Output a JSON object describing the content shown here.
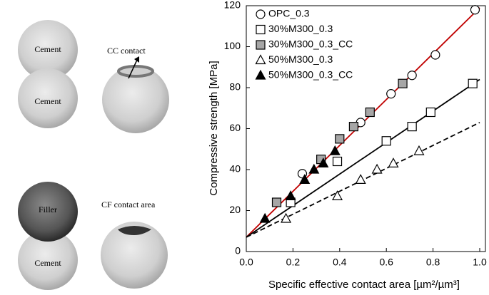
{
  "diagram": {
    "top_labels": [
      "Cement",
      "Cement"
    ],
    "top_contact": "CC contact",
    "bottom_labels": [
      "Filler",
      "Cement"
    ],
    "bottom_contact": "CF contact area"
  },
  "chart_data": {
    "type": "scatter",
    "xlabel": "Specific effective contact area [µm²/µm³]",
    "ylabel": "Compressive strength [MPa]",
    "xlim": [
      0,
      1.0
    ],
    "xticks": [
      {
        "value": 0,
        "label": "0.0"
      },
      {
        "value": 0.2,
        "label": "0.2"
      },
      {
        "value": 0.4,
        "label": "0.4"
      },
      {
        "value": 0.6,
        "label": "0.6"
      },
      {
        "value": 0.8,
        "label": "0.8"
      },
      {
        "value": 1.0,
        "label": "1.0"
      }
    ],
    "ylim": [
      0,
      120
    ],
    "yticks": [
      0,
      20,
      40,
      60,
      80,
      100,
      120
    ],
    "legend": "top-left",
    "series": [
      {
        "name": "OPC_0.3",
        "marker": "circle",
        "color": "#000000",
        "fill": "#ffffff",
        "x": [
          0.24,
          0.49,
          0.62,
          0.71,
          0.81,
          0.98
        ],
        "values": [
          38,
          63,
          77,
          86,
          96,
          118
        ]
      },
      {
        "name": "30%M300_0.3",
        "marker": "square",
        "color": "#000000",
        "fill": "#ffffff",
        "x": [
          0.19,
          0.39,
          0.6,
          0.71,
          0.79,
          0.97
        ],
        "values": [
          24,
          44,
          54,
          61,
          68,
          82
        ]
      },
      {
        "name": "30%M300_0.3_CC",
        "marker": "square",
        "color": "#000000",
        "fill": "#a6a6a6",
        "x": [
          0.13,
          0.32,
          0.4,
          0.46,
          0.53,
          0.67
        ],
        "values": [
          24,
          45,
          55,
          61,
          68,
          82
        ]
      },
      {
        "name": "50%M300_0.3",
        "marker": "triangle",
        "color": "#000000",
        "fill": "#ffffff",
        "x": [
          0.17,
          0.39,
          0.49,
          0.56,
          0.63,
          0.74
        ],
        "values": [
          16,
          27,
          35,
          40,
          43,
          49
        ]
      },
      {
        "name": "50%M300_0.3_CC",
        "marker": "triangle",
        "color": "#000000",
        "fill": "#000000",
        "x": [
          0.08,
          0.19,
          0.25,
          0.29,
          0.33,
          0.38
        ],
        "values": [
          16,
          27,
          35,
          40,
          43,
          49
        ]
      }
    ],
    "fit_lines": [
      {
        "color": "#c00000",
        "dash": false,
        "x": [
          0,
          1.0
        ],
        "values": [
          7,
          119
        ]
      },
      {
        "color": "#000000",
        "dash": false,
        "x": [
          0,
          1.0
        ],
        "values": [
          7,
          84
        ]
      },
      {
        "color": "#000000",
        "dash": true,
        "x": [
          0,
          1.0
        ],
        "values": [
          7,
          63
        ]
      }
    ]
  }
}
